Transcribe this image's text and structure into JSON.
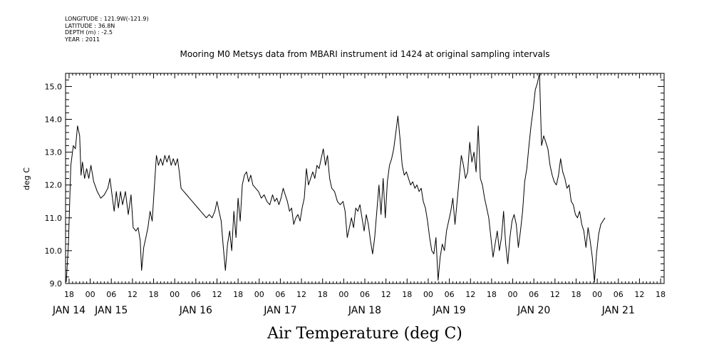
{
  "header": {
    "longitude": "LONGITUDE : 121.9W(-121.9)",
    "latitude": "LATITUDE : 36.8N",
    "depth": "DEPTH (m) : -2.5",
    "year": "YEAR : 2011"
  },
  "chart_data": {
    "type": "line",
    "title": "Mooring M0 Metsys data from MBARI instrument id 1424 at original sampling intervals",
    "xlabel": "Air Temperature (deg C)",
    "ylabel": "deg C",
    "ylim": [
      9.0,
      15.4
    ],
    "yticks": [
      "9.0",
      "10.0",
      "11.0",
      "12.0",
      "13.0",
      "14.0",
      "15.0"
    ],
    "xlim_hours": [
      -7,
      163
    ],
    "xhour_labels": [
      "18",
      "00",
      "06",
      "12",
      "18",
      "00",
      "06",
      "12",
      "18",
      "00",
      "06",
      "12",
      "18",
      "00",
      "06",
      "12",
      "18",
      "00",
      "06",
      "12",
      "18",
      "00",
      "06",
      "12",
      "18",
      "00",
      "06",
      "12",
      "18"
    ],
    "xday_labels": [
      {
        "label": "JAN 14",
        "hour": -6
      },
      {
        "label": "JAN 15",
        "hour": 6
      },
      {
        "label": "JAN 16",
        "hour": 30
      },
      {
        "label": "JAN 17",
        "hour": 54
      },
      {
        "label": "JAN 18",
        "hour": 78
      },
      {
        "label": "JAN 19",
        "hour": 102
      },
      {
        "label": "JAN 20",
        "hour": 126
      },
      {
        "label": "JAN 21",
        "hour": 150
      }
    ],
    "grid": false,
    "series": [
      {
        "color": "#000000",
        "points": [
          [
            -6.8,
            9.05
          ],
          [
            -6.2,
            10.2
          ],
          [
            -5.5,
            12.6
          ],
          [
            -4.8,
            13.2
          ],
          [
            -4.2,
            13.1
          ],
          [
            -3.6,
            13.8
          ],
          [
            -3.0,
            13.5
          ],
          [
            -2.6,
            12.3
          ],
          [
            -2.2,
            12.7
          ],
          [
            -1.6,
            12.2
          ],
          [
            -1.0,
            12.5
          ],
          [
            -0.4,
            12.2
          ],
          [
            0.2,
            12.6
          ],
          [
            1.0,
            12.1
          ],
          [
            2.0,
            11.8
          ],
          [
            3.0,
            11.6
          ],
          [
            4.0,
            11.7
          ],
          [
            5.0,
            11.9
          ],
          [
            5.6,
            12.2
          ],
          [
            6.2,
            11.7
          ],
          [
            6.8,
            11.2
          ],
          [
            7.4,
            11.8
          ],
          [
            8.0,
            11.3
          ],
          [
            8.6,
            11.8
          ],
          [
            9.2,
            11.4
          ],
          [
            10.0,
            11.8
          ],
          [
            10.8,
            11.1
          ],
          [
            11.6,
            11.7
          ],
          [
            12.2,
            10.7
          ],
          [
            13.0,
            10.6
          ],
          [
            13.6,
            10.7
          ],
          [
            14.2,
            10.3
          ],
          [
            14.6,
            9.4
          ],
          [
            15.2,
            10.1
          ],
          [
            15.8,
            10.4
          ],
          [
            16.4,
            10.7
          ],
          [
            17.0,
            11.2
          ],
          [
            17.6,
            10.9
          ],
          [
            18.2,
            11.9
          ],
          [
            18.8,
            12.9
          ],
          [
            19.4,
            12.6
          ],
          [
            20.0,
            12.8
          ],
          [
            20.6,
            12.6
          ],
          [
            21.2,
            12.9
          ],
          [
            21.8,
            12.7
          ],
          [
            22.4,
            12.9
          ],
          [
            23.0,
            12.6
          ],
          [
            23.6,
            12.8
          ],
          [
            24.2,
            12.6
          ],
          [
            24.8,
            12.8
          ],
          [
            25.3,
            12.4
          ],
          [
            25.8,
            11.9
          ],
          [
            26.6,
            11.8
          ],
          [
            27.4,
            11.7
          ],
          [
            28.2,
            11.6
          ],
          [
            29.0,
            11.5
          ],
          [
            29.8,
            11.4
          ],
          [
            30.6,
            11.3
          ],
          [
            31.4,
            11.2
          ],
          [
            32.2,
            11.1
          ],
          [
            33.0,
            11.0
          ],
          [
            33.8,
            11.1
          ],
          [
            34.6,
            11.0
          ],
          [
            35.4,
            11.2
          ],
          [
            36.0,
            11.5
          ],
          [
            36.6,
            11.2
          ],
          [
            37.2,
            10.9
          ],
          [
            37.8,
            10.1
          ],
          [
            38.4,
            9.4
          ],
          [
            39.0,
            10.2
          ],
          [
            39.6,
            10.6
          ],
          [
            40.2,
            10.0
          ],
          [
            40.8,
            11.2
          ],
          [
            41.4,
            10.4
          ],
          [
            42.0,
            11.6
          ],
          [
            42.6,
            10.9
          ],
          [
            43.2,
            12.0
          ],
          [
            43.8,
            12.3
          ],
          [
            44.4,
            12.4
          ],
          [
            45.0,
            12.1
          ],
          [
            45.6,
            12.3
          ],
          [
            46.2,
            12.0
          ],
          [
            47.0,
            11.9
          ],
          [
            47.8,
            11.8
          ],
          [
            48.6,
            11.6
          ],
          [
            49.4,
            11.7
          ],
          [
            50.2,
            11.5
          ],
          [
            51.0,
            11.4
          ],
          [
            51.8,
            11.7
          ],
          [
            52.4,
            11.5
          ],
          [
            53.0,
            11.6
          ],
          [
            53.6,
            11.4
          ],
          [
            54.2,
            11.6
          ],
          [
            54.8,
            11.9
          ],
          [
            55.4,
            11.7
          ],
          [
            56.0,
            11.5
          ],
          [
            56.6,
            11.2
          ],
          [
            57.2,
            11.3
          ],
          [
            57.8,
            10.8
          ],
          [
            58.4,
            11.0
          ],
          [
            59.0,
            11.1
          ],
          [
            59.6,
            10.9
          ],
          [
            60.2,
            11.3
          ],
          [
            60.8,
            11.6
          ],
          [
            61.4,
            12.5
          ],
          [
            62.0,
            12.0
          ],
          [
            62.6,
            12.2
          ],
          [
            63.2,
            12.4
          ],
          [
            63.8,
            12.2
          ],
          [
            64.4,
            12.6
          ],
          [
            65.0,
            12.5
          ],
          [
            65.6,
            12.8
          ],
          [
            66.2,
            13.1
          ],
          [
            66.8,
            12.6
          ],
          [
            67.4,
            12.9
          ],
          [
            68.0,
            12.2
          ],
          [
            68.6,
            11.9
          ],
          [
            69.4,
            11.8
          ],
          [
            70.2,
            11.5
          ],
          [
            71.0,
            11.4
          ],
          [
            71.8,
            11.5
          ],
          [
            72.4,
            11.2
          ],
          [
            73.0,
            10.4
          ],
          [
            73.6,
            10.7
          ],
          [
            74.2,
            11.0
          ],
          [
            74.8,
            10.7
          ],
          [
            75.4,
            11.3
          ],
          [
            76.0,
            11.2
          ],
          [
            76.6,
            11.4
          ],
          [
            77.2,
            11.0
          ],
          [
            77.8,
            10.6
          ],
          [
            78.4,
            11.1
          ],
          [
            79.0,
            10.8
          ],
          [
            79.6,
            10.3
          ],
          [
            80.2,
            9.9
          ],
          [
            80.8,
            10.4
          ],
          [
            81.4,
            11.2
          ],
          [
            82.0,
            12.0
          ],
          [
            82.6,
            11.1
          ],
          [
            83.2,
            12.2
          ],
          [
            83.8,
            11.0
          ],
          [
            84.4,
            12.1
          ],
          [
            85.0,
            12.6
          ],
          [
            85.6,
            12.8
          ],
          [
            86.2,
            13.1
          ],
          [
            86.8,
            13.6
          ],
          [
            87.4,
            14.1
          ],
          [
            88.0,
            13.4
          ],
          [
            88.6,
            12.6
          ],
          [
            89.2,
            12.3
          ],
          [
            89.8,
            12.4
          ],
          [
            90.4,
            12.2
          ],
          [
            91.0,
            12.0
          ],
          [
            91.6,
            12.1
          ],
          [
            92.2,
            11.9
          ],
          [
            92.8,
            12.0
          ],
          [
            93.4,
            11.8
          ],
          [
            94.0,
            11.9
          ],
          [
            94.6,
            11.5
          ],
          [
            95.2,
            11.3
          ],
          [
            95.8,
            10.9
          ],
          [
            96.4,
            10.4
          ],
          [
            97.0,
            10.0
          ],
          [
            97.6,
            9.9
          ],
          [
            98.2,
            10.4
          ],
          [
            98.8,
            9.1
          ],
          [
            99.4,
            9.8
          ],
          [
            100.0,
            10.2
          ],
          [
            100.6,
            10.0
          ],
          [
            101.2,
            10.6
          ],
          [
            101.8,
            10.9
          ],
          [
            102.4,
            11.2
          ],
          [
            103.0,
            11.6
          ],
          [
            103.6,
            10.8
          ],
          [
            104.2,
            11.5
          ],
          [
            104.8,
            12.2
          ],
          [
            105.4,
            12.9
          ],
          [
            106.0,
            12.6
          ],
          [
            106.6,
            12.2
          ],
          [
            107.2,
            12.4
          ],
          [
            107.8,
            13.3
          ],
          [
            108.4,
            12.7
          ],
          [
            109.0,
            13.0
          ],
          [
            109.6,
            12.4
          ],
          [
            110.2,
            13.8
          ],
          [
            110.8,
            12.2
          ],
          [
            111.4,
            12.0
          ],
          [
            112.0,
            11.6
          ],
          [
            112.6,
            11.3
          ],
          [
            113.2,
            11.0
          ],
          [
            113.8,
            10.4
          ],
          [
            114.4,
            9.8
          ],
          [
            115.0,
            10.2
          ],
          [
            115.6,
            10.6
          ],
          [
            116.2,
            10.0
          ],
          [
            116.8,
            10.4
          ],
          [
            117.4,
            11.2
          ],
          [
            118.0,
            10.2
          ],
          [
            118.6,
            9.6
          ],
          [
            119.2,
            10.4
          ],
          [
            119.8,
            10.9
          ],
          [
            120.4,
            11.1
          ],
          [
            121.0,
            10.8
          ],
          [
            121.6,
            10.1
          ],
          [
            122.2,
            10.6
          ],
          [
            122.8,
            11.2
          ],
          [
            123.4,
            12.1
          ],
          [
            124.0,
            12.5
          ],
          [
            124.6,
            13.2
          ],
          [
            125.2,
            13.8
          ],
          [
            125.8,
            14.3
          ],
          [
            126.4,
            14.9
          ],
          [
            127.0,
            15.1
          ],
          [
            127.6,
            15.4
          ],
          [
            128.2,
            13.2
          ],
          [
            128.8,
            13.5
          ],
          [
            129.4,
            13.3
          ],
          [
            130.0,
            13.1
          ],
          [
            130.6,
            12.6
          ],
          [
            131.2,
            12.3
          ],
          [
            131.8,
            12.1
          ],
          [
            132.4,
            12.0
          ],
          [
            133.0,
            12.3
          ],
          [
            133.6,
            12.8
          ],
          [
            134.2,
            12.4
          ],
          [
            134.8,
            12.2
          ],
          [
            135.4,
            11.9
          ],
          [
            136.0,
            12.0
          ],
          [
            136.6,
            11.5
          ],
          [
            137.2,
            11.4
          ],
          [
            137.8,
            11.1
          ],
          [
            138.4,
            11.0
          ],
          [
            139.0,
            11.2
          ],
          [
            139.6,
            10.8
          ],
          [
            140.2,
            10.6
          ],
          [
            140.8,
            10.1
          ],
          [
            141.4,
            10.7
          ],
          [
            142.0,
            10.3
          ],
          [
            142.6,
            9.8
          ],
          [
            143.2,
            9.05
          ],
          [
            143.8,
            9.9
          ],
          [
            144.4,
            10.5
          ],
          [
            145.0,
            10.8
          ],
          [
            145.6,
            10.9
          ],
          [
            146.2,
            11.0
          ]
        ]
      }
    ]
  }
}
